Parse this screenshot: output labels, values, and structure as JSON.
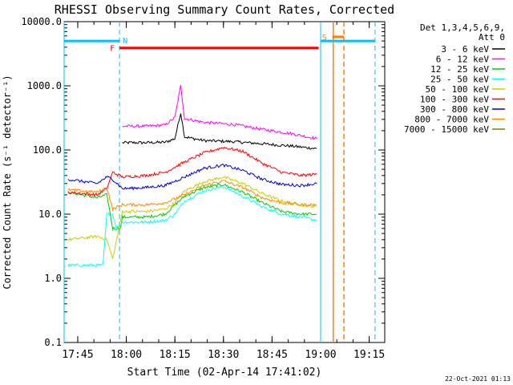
{
  "chart_data": {
    "type": "line",
    "title": "RHESSI Observing Summary Count Rates, Corrected",
    "xlabel": "Start Time (02-Apr-14 17:41:02)",
    "ylabel": "Corrected Count Rate (s⁻¹ detector⁻¹)",
    "y_scale": "log",
    "ylim": [
      0.1,
      10000
    ],
    "xlim_minutes": [
      17.68,
      19.33
    ],
    "x_ticks": [
      {
        "t": 17.75,
        "label": "17:45"
      },
      {
        "t": 18.0,
        "label": "18:00"
      },
      {
        "t": 18.25,
        "label": "18:15"
      },
      {
        "t": 18.5,
        "label": "18:30"
      },
      {
        "t": 18.75,
        "label": "18:45"
      },
      {
        "t": 19.0,
        "label": "19:00"
      },
      {
        "t": 19.25,
        "label": "19:15"
      }
    ],
    "y_ticks": [
      {
        "v": 0.1,
        "label": "0.1"
      },
      {
        "v": 1,
        "label": "1.0"
      },
      {
        "v": 10,
        "label": "10.0"
      },
      {
        "v": 100,
        "label": "100.0"
      },
      {
        "v": 1000,
        "label": "1000.0"
      },
      {
        "v": 10000,
        "label": "10000.0"
      }
    ],
    "legend_header": [
      "Det 1,3,4,5,6,9,",
      "Att 0"
    ],
    "legend_position": "right",
    "series": [
      {
        "name": "3 - 6 keV",
        "color": "#000000",
        "points": [
          [
            17.98,
            130
          ],
          [
            18.1,
            130
          ],
          [
            18.2,
            132
          ],
          [
            18.25,
            150
          ],
          [
            18.28,
            380
          ],
          [
            18.3,
            160
          ],
          [
            18.4,
            140
          ],
          [
            18.55,
            135
          ],
          [
            18.7,
            125
          ],
          [
            18.85,
            115
          ],
          [
            18.98,
            105
          ]
        ]
      },
      {
        "name": "6 - 12 keV",
        "color": "#ff00ff",
        "points": [
          [
            17.98,
            235
          ],
          [
            18.1,
            235
          ],
          [
            18.2,
            245
          ],
          [
            18.25,
            320
          ],
          [
            18.28,
            1000
          ],
          [
            18.3,
            310
          ],
          [
            18.4,
            270
          ],
          [
            18.55,
            250
          ],
          [
            18.7,
            210
          ],
          [
            18.85,
            180
          ],
          [
            18.98,
            150
          ]
        ]
      },
      {
        "name": "12 - 25 keV",
        "color": "#00cc00",
        "points": [
          [
            17.7,
            22
          ],
          [
            17.85,
            18
          ],
          [
            17.9,
            20
          ],
          [
            17.93,
            6
          ],
          [
            17.97,
            6
          ],
          [
            17.98,
            9
          ],
          [
            18.1,
            9
          ],
          [
            18.2,
            10
          ],
          [
            18.25,
            14
          ],
          [
            18.3,
            19
          ],
          [
            18.4,
            26
          ],
          [
            18.5,
            29
          ],
          [
            18.6,
            22
          ],
          [
            18.7,
            15
          ],
          [
            18.8,
            11
          ],
          [
            18.9,
            10
          ],
          [
            18.98,
            10
          ]
        ]
      },
      {
        "name": "25 - 50 keV",
        "color": "#00ffff",
        "points": [
          [
            17.7,
            1.6
          ],
          [
            17.88,
            1.6
          ],
          [
            17.9,
            10
          ],
          [
            17.93,
            10
          ],
          [
            17.95,
            6
          ],
          [
            17.98,
            7.5
          ],
          [
            18.1,
            7.5
          ],
          [
            18.2,
            8
          ],
          [
            18.25,
            10
          ],
          [
            18.3,
            16
          ],
          [
            18.4,
            23
          ],
          [
            18.5,
            27
          ],
          [
            18.6,
            19
          ],
          [
            18.7,
            13
          ],
          [
            18.8,
            10
          ],
          [
            18.9,
            9
          ],
          [
            18.98,
            8
          ]
        ]
      },
      {
        "name": "50 - 100 keV",
        "color": "#cccc00",
        "points": [
          [
            17.7,
            4
          ],
          [
            17.85,
            4.5
          ],
          [
            17.9,
            4
          ],
          [
            17.93,
            2
          ],
          [
            17.98,
            11
          ],
          [
            18.1,
            11
          ],
          [
            18.2,
            12
          ],
          [
            18.25,
            15
          ],
          [
            18.3,
            23
          ],
          [
            18.4,
            32
          ],
          [
            18.5,
            38
          ],
          [
            18.6,
            30
          ],
          [
            18.7,
            21
          ],
          [
            18.8,
            16
          ],
          [
            18.9,
            14
          ],
          [
            18.98,
            13
          ]
        ]
      },
      {
        "name": "100 - 300 keV",
        "color": "#ff0000",
        "points": [
          [
            17.7,
            22
          ],
          [
            17.85,
            20
          ],
          [
            17.9,
            25
          ],
          [
            17.93,
            45
          ],
          [
            17.98,
            38
          ],
          [
            18.1,
            40
          ],
          [
            18.2,
            45
          ],
          [
            18.3,
            65
          ],
          [
            18.4,
            90
          ],
          [
            18.5,
            110
          ],
          [
            18.6,
            95
          ],
          [
            18.7,
            62
          ],
          [
            18.8,
            45
          ],
          [
            18.9,
            40
          ],
          [
            18.98,
            42
          ]
        ]
      },
      {
        "name": "300 - 800 keV",
        "color": "#0000cc",
        "points": [
          [
            17.7,
            35
          ],
          [
            17.85,
            30
          ],
          [
            17.9,
            38
          ],
          [
            17.93,
            35
          ],
          [
            17.98,
            25
          ],
          [
            18.1,
            26
          ],
          [
            18.2,
            28
          ],
          [
            18.3,
            38
          ],
          [
            18.4,
            52
          ],
          [
            18.5,
            58
          ],
          [
            18.6,
            48
          ],
          [
            18.7,
            35
          ],
          [
            18.8,
            29
          ],
          [
            18.9,
            28
          ],
          [
            18.98,
            30
          ]
        ]
      },
      {
        "name": "800 - 7000 keV",
        "color": "#ff8800",
        "points": [
          [
            17.7,
            24
          ],
          [
            17.85,
            22
          ],
          [
            17.9,
            26
          ],
          [
            17.93,
            12
          ],
          [
            17.98,
            14
          ],
          [
            18.1,
            14
          ],
          [
            18.2,
            15
          ],
          [
            18.3,
            20
          ],
          [
            18.4,
            28
          ],
          [
            18.5,
            33
          ],
          [
            18.6,
            26
          ],
          [
            18.7,
            18
          ],
          [
            18.8,
            15
          ],
          [
            18.9,
            14
          ],
          [
            18.98,
            14
          ]
        ]
      },
      {
        "name": "7000 - 15000 keV",
        "color": "#808000",
        "points": []
      }
    ],
    "annotations": [
      {
        "label": "N",
        "color": "#00bfff"
      },
      {
        "label": "F",
        "color": "#ff0000"
      },
      {
        "label": "S",
        "color": "#ff7f00"
      }
    ],
    "footer_date": "22-Oct-2021 01:13"
  }
}
